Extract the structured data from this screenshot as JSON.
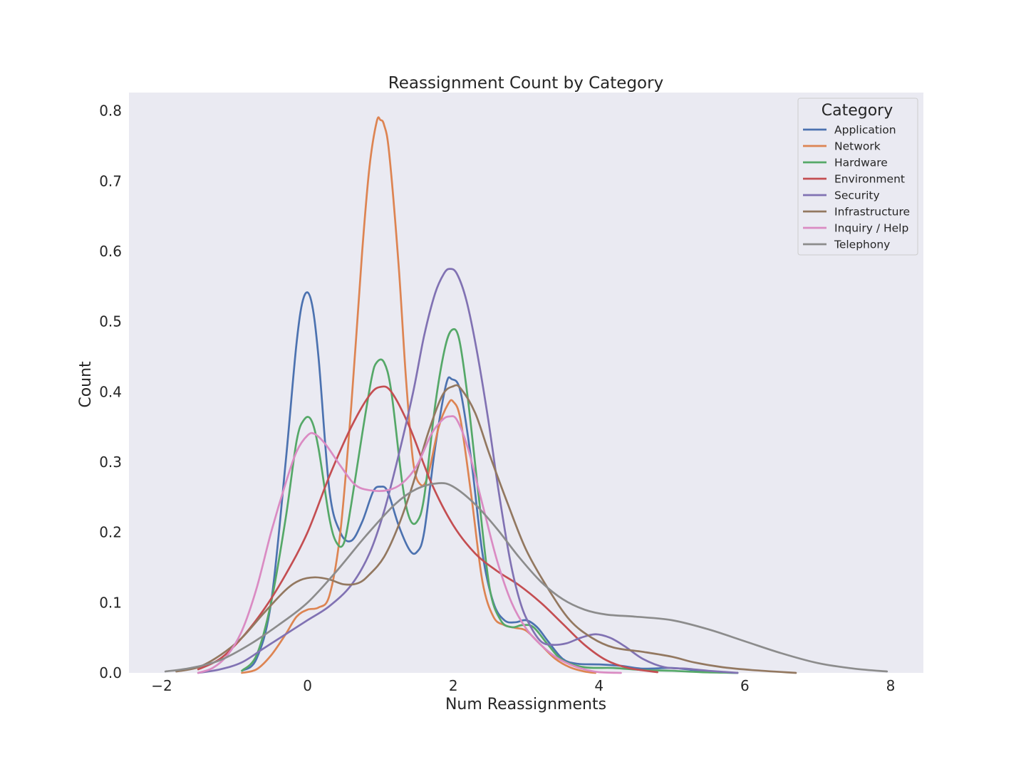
{
  "chart_data": {
    "type": "line",
    "title": "Reassignment Count by Category",
    "xlabel": "Num Reassignments",
    "ylabel": "Count",
    "xlim": [
      -2.45,
      8.45
    ],
    "ylim": [
      0,
      0.826
    ],
    "x_ticks": [
      -2,
      0,
      2,
      4,
      6,
      8
    ],
    "x_tick_labels": [
      "−2",
      "0",
      "2",
      "4",
      "6",
      "8"
    ],
    "y_ticks": [
      0.0,
      0.1,
      0.2,
      0.3,
      0.4,
      0.5,
      0.6,
      0.7,
      0.8
    ],
    "y_tick_labels": [
      "0.0",
      "0.1",
      "0.2",
      "0.3",
      "0.4",
      "0.5",
      "0.6",
      "0.7",
      "0.8"
    ],
    "grid": false,
    "background": "#eaeaf2",
    "legend": {
      "title": "Category",
      "placement": "top-right"
    },
    "series": [
      {
        "name": "Application",
        "color": "#4c72b0",
        "points": [
          [
            -0.9,
            0.003
          ],
          [
            -0.7,
            0.02
          ],
          [
            -0.5,
            0.1
          ],
          [
            -0.3,
            0.3
          ],
          [
            -0.15,
            0.47
          ],
          [
            -0.05,
            0.535
          ],
          [
            0.05,
            0.53
          ],
          [
            0.15,
            0.45
          ],
          [
            0.3,
            0.26
          ],
          [
            0.45,
            0.2
          ],
          [
            0.6,
            0.188
          ],
          [
            0.75,
            0.215
          ],
          [
            0.9,
            0.258
          ],
          [
            1.0,
            0.265
          ],
          [
            1.1,
            0.258
          ],
          [
            1.25,
            0.21
          ],
          [
            1.4,
            0.175
          ],
          [
            1.5,
            0.172
          ],
          [
            1.6,
            0.2
          ],
          [
            1.75,
            0.32
          ],
          [
            1.9,
            0.41
          ],
          [
            1.98,
            0.418
          ],
          [
            2.1,
            0.4
          ],
          [
            2.25,
            0.3
          ],
          [
            2.4,
            0.17
          ],
          [
            2.55,
            0.1
          ],
          [
            2.7,
            0.075
          ],
          [
            2.85,
            0.072
          ],
          [
            3.0,
            0.075
          ],
          [
            3.15,
            0.065
          ],
          [
            3.3,
            0.045
          ],
          [
            3.5,
            0.02
          ],
          [
            3.7,
            0.013
          ],
          [
            4.0,
            0.012
          ],
          [
            4.3,
            0.01
          ],
          [
            4.6,
            0.006
          ],
          [
            5.0,
            0.007
          ],
          [
            5.3,
            0.004
          ],
          [
            5.6,
            0.001
          ],
          [
            5.9,
            0.0
          ]
        ]
      },
      {
        "name": "Network",
        "color": "#dd8452",
        "points": [
          [
            -0.9,
            0.0
          ],
          [
            -0.7,
            0.005
          ],
          [
            -0.5,
            0.025
          ],
          [
            -0.3,
            0.055
          ],
          [
            -0.15,
            0.08
          ],
          [
            0.0,
            0.09
          ],
          [
            0.15,
            0.093
          ],
          [
            0.3,
            0.11
          ],
          [
            0.45,
            0.2
          ],
          [
            0.6,
            0.38
          ],
          [
            0.75,
            0.6
          ],
          [
            0.85,
            0.72
          ],
          [
            0.95,
            0.785
          ],
          [
            1.0,
            0.787
          ],
          [
            1.05,
            0.78
          ],
          [
            1.12,
            0.74
          ],
          [
            1.25,
            0.58
          ],
          [
            1.35,
            0.42
          ],
          [
            1.45,
            0.3
          ],
          [
            1.55,
            0.268
          ],
          [
            1.65,
            0.28
          ],
          [
            1.8,
            0.35
          ],
          [
            1.93,
            0.383
          ],
          [
            2.0,
            0.386
          ],
          [
            2.1,
            0.36
          ],
          [
            2.25,
            0.25
          ],
          [
            2.4,
            0.13
          ],
          [
            2.55,
            0.08
          ],
          [
            2.7,
            0.068
          ],
          [
            2.85,
            0.064
          ],
          [
            3.0,
            0.06
          ],
          [
            3.2,
            0.04
          ],
          [
            3.4,
            0.02
          ],
          [
            3.6,
            0.008
          ],
          [
            3.8,
            0.002
          ],
          [
            3.95,
            0.0
          ]
        ]
      },
      {
        "name": "Hardware",
        "color": "#55a868",
        "points": [
          [
            -0.9,
            0.003
          ],
          [
            -0.7,
            0.025
          ],
          [
            -0.5,
            0.1
          ],
          [
            -0.3,
            0.22
          ],
          [
            -0.15,
            0.33
          ],
          [
            -0.05,
            0.36
          ],
          [
            0.05,
            0.36
          ],
          [
            0.15,
            0.32
          ],
          [
            0.3,
            0.22
          ],
          [
            0.4,
            0.185
          ],
          [
            0.5,
            0.185
          ],
          [
            0.6,
            0.24
          ],
          [
            0.75,
            0.34
          ],
          [
            0.88,
            0.42
          ],
          [
            0.95,
            0.442
          ],
          [
            1.05,
            0.442
          ],
          [
            1.15,
            0.4
          ],
          [
            1.3,
            0.27
          ],
          [
            1.4,
            0.22
          ],
          [
            1.5,
            0.215
          ],
          [
            1.6,
            0.25
          ],
          [
            1.75,
            0.38
          ],
          [
            1.88,
            0.46
          ],
          [
            1.98,
            0.488
          ],
          [
            2.08,
            0.475
          ],
          [
            2.2,
            0.39
          ],
          [
            2.35,
            0.25
          ],
          [
            2.5,
            0.12
          ],
          [
            2.65,
            0.075
          ],
          [
            2.8,
            0.065
          ],
          [
            2.95,
            0.068
          ],
          [
            3.1,
            0.065
          ],
          [
            3.3,
            0.04
          ],
          [
            3.5,
            0.018
          ],
          [
            3.8,
            0.008
          ],
          [
            4.2,
            0.007
          ],
          [
            4.6,
            0.004
          ],
          [
            5.0,
            0.003
          ],
          [
            5.4,
            0.001
          ],
          [
            5.9,
            0.0
          ]
        ]
      },
      {
        "name": "Environment",
        "color": "#c44e52",
        "points": [
          [
            -1.5,
            0.005
          ],
          [
            -1.2,
            0.02
          ],
          [
            -0.9,
            0.05
          ],
          [
            -0.6,
            0.09
          ],
          [
            -0.3,
            0.14
          ],
          [
            0.0,
            0.2
          ],
          [
            0.3,
            0.28
          ],
          [
            0.6,
            0.35
          ],
          [
            0.85,
            0.395
          ],
          [
            1.0,
            0.407
          ],
          [
            1.15,
            0.4
          ],
          [
            1.4,
            0.35
          ],
          [
            1.7,
            0.27
          ],
          [
            2.0,
            0.21
          ],
          [
            2.3,
            0.17
          ],
          [
            2.6,
            0.145
          ],
          [
            2.9,
            0.125
          ],
          [
            3.2,
            0.1
          ],
          [
            3.5,
            0.07
          ],
          [
            3.8,
            0.04
          ],
          [
            4.1,
            0.018
          ],
          [
            4.4,
            0.007
          ],
          [
            4.8,
            0.001
          ]
        ]
      },
      {
        "name": "Security",
        "color": "#8172b3",
        "points": [
          [
            -1.5,
            0.0
          ],
          [
            -1.2,
            0.005
          ],
          [
            -0.9,
            0.015
          ],
          [
            -0.6,
            0.035
          ],
          [
            -0.3,
            0.055
          ],
          [
            0.0,
            0.075
          ],
          [
            0.3,
            0.095
          ],
          [
            0.6,
            0.125
          ],
          [
            0.85,
            0.17
          ],
          [
            1.05,
            0.23
          ],
          [
            1.25,
            0.31
          ],
          [
            1.45,
            0.4
          ],
          [
            1.6,
            0.48
          ],
          [
            1.75,
            0.54
          ],
          [
            1.87,
            0.568
          ],
          [
            1.95,
            0.575
          ],
          [
            2.05,
            0.568
          ],
          [
            2.18,
            0.53
          ],
          [
            2.32,
            0.46
          ],
          [
            2.48,
            0.36
          ],
          [
            2.62,
            0.26
          ],
          [
            2.78,
            0.16
          ],
          [
            2.92,
            0.1
          ],
          [
            3.05,
            0.068
          ],
          [
            3.2,
            0.045
          ],
          [
            3.35,
            0.04
          ],
          [
            3.55,
            0.042
          ],
          [
            3.75,
            0.05
          ],
          [
            3.95,
            0.055
          ],
          [
            4.15,
            0.05
          ],
          [
            4.35,
            0.038
          ],
          [
            4.6,
            0.02
          ],
          [
            4.9,
            0.008
          ],
          [
            5.2,
            0.006
          ],
          [
            5.5,
            0.003
          ],
          [
            5.9,
            0.0
          ]
        ]
      },
      {
        "name": "Infrastructure",
        "color": "#937860",
        "points": [
          [
            -1.8,
            0.002
          ],
          [
            -1.5,
            0.008
          ],
          [
            -1.2,
            0.025
          ],
          [
            -0.9,
            0.05
          ],
          [
            -0.6,
            0.085
          ],
          [
            -0.3,
            0.118
          ],
          [
            -0.1,
            0.132
          ],
          [
            0.1,
            0.136
          ],
          [
            0.3,
            0.133
          ],
          [
            0.5,
            0.126
          ],
          [
            0.7,
            0.128
          ],
          [
            0.85,
            0.14
          ],
          [
            1.05,
            0.165
          ],
          [
            1.25,
            0.21
          ],
          [
            1.45,
            0.27
          ],
          [
            1.65,
            0.34
          ],
          [
            1.85,
            0.395
          ],
          [
            2.0,
            0.408
          ],
          [
            2.1,
            0.405
          ],
          [
            2.3,
            0.37
          ],
          [
            2.5,
            0.31
          ],
          [
            2.75,
            0.24
          ],
          [
            3.0,
            0.175
          ],
          [
            3.3,
            0.12
          ],
          [
            3.6,
            0.075
          ],
          [
            3.9,
            0.05
          ],
          [
            4.2,
            0.036
          ],
          [
            4.6,
            0.03
          ],
          [
            5.0,
            0.023
          ],
          [
            5.3,
            0.015
          ],
          [
            5.7,
            0.008
          ],
          [
            6.1,
            0.004
          ],
          [
            6.7,
            0.0
          ]
        ]
      },
      {
        "name": "Inquiry / Help",
        "color": "#da8bc3",
        "points": [
          [
            -1.5,
            0.0
          ],
          [
            -1.3,
            0.007
          ],
          [
            -1.1,
            0.025
          ],
          [
            -0.9,
            0.06
          ],
          [
            -0.7,
            0.12
          ],
          [
            -0.5,
            0.2
          ],
          [
            -0.3,
            0.27
          ],
          [
            -0.15,
            0.315
          ],
          [
            0.0,
            0.338
          ],
          [
            0.1,
            0.34
          ],
          [
            0.25,
            0.325
          ],
          [
            0.45,
            0.295
          ],
          [
            0.65,
            0.268
          ],
          [
            0.85,
            0.26
          ],
          [
            1.1,
            0.26
          ],
          [
            1.3,
            0.27
          ],
          [
            1.5,
            0.295
          ],
          [
            1.7,
            0.34
          ],
          [
            1.85,
            0.36
          ],
          [
            1.95,
            0.365
          ],
          [
            2.05,
            0.36
          ],
          [
            2.2,
            0.32
          ],
          [
            2.4,
            0.24
          ],
          [
            2.6,
            0.16
          ],
          [
            2.8,
            0.1
          ],
          [
            3.0,
            0.063
          ],
          [
            3.2,
            0.04
          ],
          [
            3.4,
            0.023
          ],
          [
            3.6,
            0.012
          ],
          [
            3.8,
            0.005
          ],
          [
            4.0,
            0.001
          ],
          [
            4.3,
            0.0
          ]
        ]
      },
      {
        "name": "Telephony",
        "color": "#8c8c8c",
        "points": [
          [
            -1.95,
            0.002
          ],
          [
            -1.6,
            0.007
          ],
          [
            -1.2,
            0.018
          ],
          [
            -0.8,
            0.04
          ],
          [
            -0.4,
            0.068
          ],
          [
            0.0,
            0.1
          ],
          [
            0.4,
            0.145
          ],
          [
            0.8,
            0.195
          ],
          [
            1.2,
            0.24
          ],
          [
            1.5,
            0.262
          ],
          [
            1.8,
            0.27
          ],
          [
            2.0,
            0.265
          ],
          [
            2.3,
            0.24
          ],
          [
            2.6,
            0.205
          ],
          [
            2.9,
            0.165
          ],
          [
            3.2,
            0.13
          ],
          [
            3.5,
            0.105
          ],
          [
            3.8,
            0.09
          ],
          [
            4.1,
            0.083
          ],
          [
            4.5,
            0.08
          ],
          [
            5.0,
            0.075
          ],
          [
            5.5,
            0.062
          ],
          [
            6.0,
            0.045
          ],
          [
            6.5,
            0.028
          ],
          [
            7.0,
            0.014
          ],
          [
            7.5,
            0.006
          ],
          [
            7.95,
            0.002
          ]
        ]
      }
    ]
  }
}
